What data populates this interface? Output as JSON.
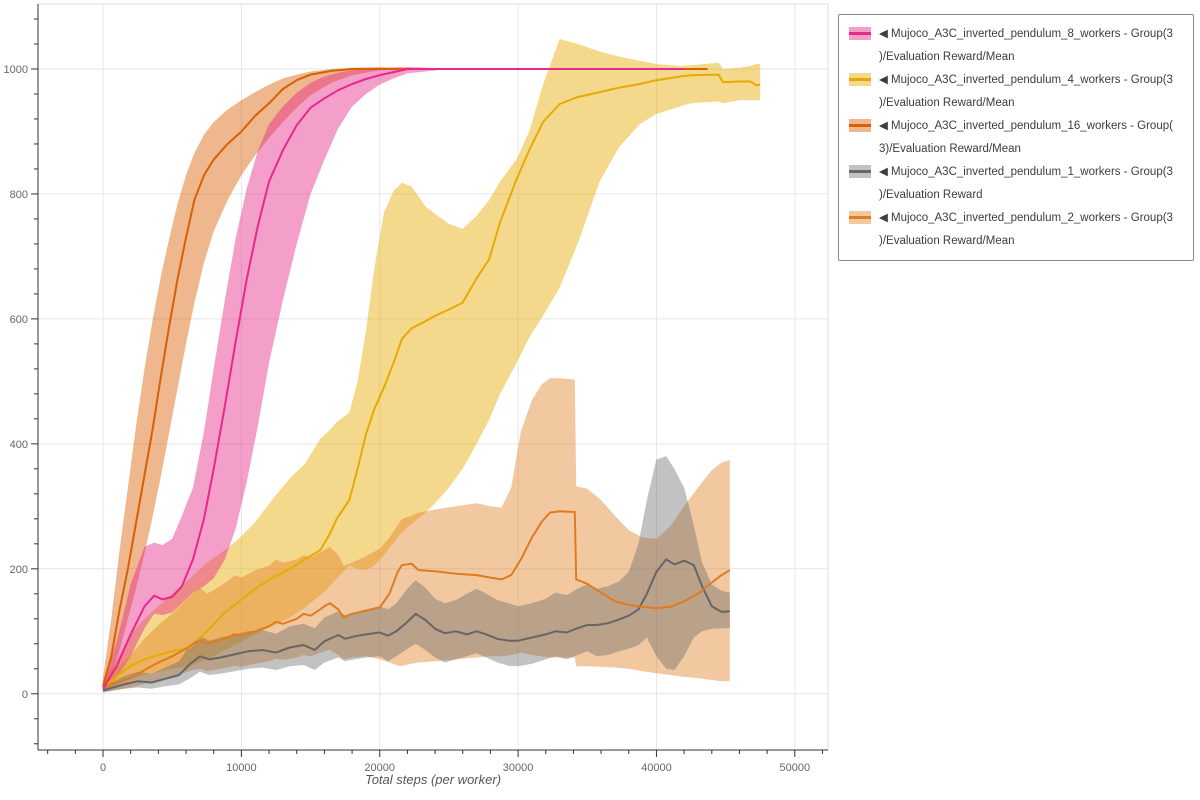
{
  "figure": {
    "background": "#ffffff"
  },
  "axis": {
    "x_tick_labels": [
      "0",
      "10000",
      "20000",
      "30000",
      "40000",
      "50000"
    ],
    "y_tick_labels": [
      "0",
      "200",
      "400",
      "600",
      "800",
      "1000"
    ],
    "colors": {
      "grid": "#e6e6e6",
      "frame": "#dedede",
      "axis_line": "#333333",
      "tick_label": "#666666",
      "xlabel": "#555555"
    }
  },
  "legend": {
    "border_color": "#8a8a8a",
    "entries": [
      {
        "series": "w8",
        "line1": "◀ Mujoco_A3C_inverted_pendulum_8_workers - Group(3",
        "line2": ")/Evaluation Reward/Mean"
      },
      {
        "series": "w4",
        "line1": "◀ Mujoco_A3C_inverted_pendulum_4_workers - Group(3",
        "line2": ")/Evaluation Reward/Mean"
      },
      {
        "series": "w16",
        "line1": "◀ Mujoco_A3C_inverted_pendulum_16_workers - Group(",
        "line2": "3)/Evaluation Reward/Mean"
      },
      {
        "series": "w1",
        "line1": "◀ Mujoco_A3C_inverted_pendulum_1_workers - Group(3",
        "line2": ")/Evaluation Reward"
      },
      {
        "series": "w2",
        "line1": "◀ Mujoco_A3C_inverted_pendulum_2_workers - Group(3",
        "line2": ")/Evaluation Reward/Mean"
      }
    ]
  },
  "chart_data": {
    "type": "line",
    "title": "",
    "xlabel": "Total steps (per worker)",
    "ylabel": "",
    "xlim": [
      -4700,
      52400
    ],
    "ylim": [
      -90,
      1104
    ],
    "x_ticks": [
      0,
      10000,
      20000,
      30000,
      40000,
      50000
    ],
    "y_ticks": [
      0,
      200,
      400,
      600,
      800,
      1000
    ],
    "x_minor_step": 2000,
    "y_minor_step": 40,
    "grid": true,
    "legend_position": "outside-top-right",
    "band_order": [
      "w4",
      "w16",
      "w8",
      "w2",
      "w1"
    ],
    "line_order": [
      "w4",
      "w1",
      "w2",
      "w16",
      "w8"
    ],
    "series": {
      "w8": {
        "name": "Mujoco_A3C_inverted_pendulum_8_workers - Group(3)/Evaluation Reward/Mean",
        "color": "#e7298a",
        "band_alpha": 0.45,
        "x": [
          0,
          1000,
          2000,
          3000,
          3700,
          4300,
          5000,
          5700,
          6500,
          7300,
          8000,
          8800,
          9600,
          10400,
          11200,
          12000,
          13000,
          14000,
          15000,
          16000,
          17000,
          18000,
          19000,
          20000,
          21000,
          22000,
          25000,
          30000,
          35000,
          40000,
          41900
        ],
        "mean": [
          8,
          45,
          95,
          140,
          157,
          151,
          155,
          172,
          215,
          280,
          360,
          460,
          565,
          665,
          750,
          820,
          870,
          910,
          938,
          953,
          966,
          976,
          984,
          990,
          995,
          1000,
          1000,
          1000,
          1000,
          1000,
          1000
        ],
        "lower": [
          4,
          25,
          60,
          105,
          128,
          126,
          130,
          145,
          162,
          172,
          185,
          215,
          265,
          340,
          430,
          530,
          630,
          720,
          800,
          855,
          905,
          940,
          960,
          975,
          985,
          993,
          1000,
          1000,
          1000,
          1000,
          1000
        ],
        "upper": [
          15,
          85,
          175,
          235,
          242,
          238,
          248,
          285,
          330,
          420,
          520,
          630,
          730,
          810,
          870,
          912,
          940,
          962,
          978,
          988,
          994,
          998,
          1000,
          1001,
          1002,
          1003,
          1001,
          1001,
          1001,
          1001,
          1001
        ]
      },
      "w4": {
        "name": "Mujoco_A3C_inverted_pendulum_4_workers - Group(3)/Evaluation Reward/Mean",
        "color": "#e6ab02",
        "band_alpha": 0.45,
        "x": [
          0,
          1000,
          2000,
          3000,
          4000,
          5000,
          6300,
          7500,
          8800,
          9900,
          11000,
          12200,
          13500,
          14600,
          15700,
          16300,
          16900,
          17800,
          18400,
          19000,
          19600,
          20300,
          21000,
          21600,
          22300,
          23300,
          24000,
          25000,
          26000,
          27000,
          27900,
          28700,
          29900,
          30800,
          31800,
          33000,
          34300,
          35900,
          37300,
          38800,
          40000,
          41700,
          42500,
          44500,
          44800,
          46000,
          46800,
          47200,
          47500
        ],
        "mean": [
          10,
          28,
          45,
          55,
          62,
          68,
          74,
          100,
          130,
          149,
          168,
          185,
          200,
          215,
          230,
          252,
          280,
          310,
          360,
          415,
          455,
          490,
          530,
          568,
          585,
          596,
          605,
          615,
          626,
          665,
          695,
          755,
          824,
          870,
          915,
          944,
          955,
          963,
          970,
          976,
          982,
          988,
          990,
          991,
          979,
          980,
          980,
          974,
          975
        ],
        "lower": [
          4,
          14,
          24,
          30,
          35,
          40,
          45,
          55,
          70,
          82,
          95,
          108,
          122,
          138,
          158,
          170,
          185,
          205,
          200,
          198,
          205,
          222,
          242,
          258,
          272,
          290,
          305,
          330,
          360,
          400,
          438,
          480,
          530,
          570,
          605,
          650,
          720,
          820,
          875,
          912,
          928,
          940,
          945,
          948,
          945,
          950,
          950,
          950,
          950
        ],
        "upper": [
          20,
          55,
          95,
          120,
          140,
          160,
          185,
          210,
          230,
          250,
          275,
          310,
          345,
          368,
          408,
          420,
          435,
          450,
          500,
          580,
          680,
          770,
          805,
          818,
          812,
          780,
          768,
          752,
          744,
          765,
          790,
          820,
          856,
          900,
          975,
          1048,
          1040,
          1028,
          1020,
          1013,
          1008,
          1005,
          1006,
          1010,
          1000,
          1002,
          1005,
          1008,
          1008
        ]
      },
      "w16": {
        "name": "Mujoco_A3C_inverted_pendulum_16_workers - Group(3)/Evaluation Reward/Mean",
        "color": "#d95f02",
        "band_alpha": 0.45,
        "x": [
          0,
          600,
          1200,
          1800,
          2400,
          3000,
          3600,
          4200,
          4800,
          5400,
          6000,
          6600,
          7300,
          8000,
          9000,
          10000,
          11000,
          12000,
          13000,
          14000,
          15000,
          16500,
          18000,
          20000,
          25000,
          30000,
          35000,
          40000,
          43700
        ],
        "mean": [
          12,
          60,
          135,
          200,
          275,
          350,
          425,
          510,
          590,
          665,
          730,
          790,
          830,
          855,
          880,
          900,
          925,
          945,
          968,
          982,
          991,
          997,
          1000,
          1000,
          1000,
          1000,
          1000,
          1000,
          1000
        ],
        "lower": [
          5,
          30,
          70,
          120,
          170,
          225,
          285,
          350,
          420,
          490,
          560,
          625,
          690,
          740,
          790,
          830,
          862,
          890,
          915,
          938,
          958,
          978,
          990,
          998,
          1000,
          1000,
          1000,
          1000,
          1000
        ],
        "upper": [
          25,
          120,
          230,
          330,
          430,
          520,
          600,
          670,
          730,
          785,
          830,
          865,
          895,
          915,
          935,
          950,
          963,
          975,
          985,
          991,
          996,
          1000,
          1002,
          1003,
          1001,
          1001,
          1001,
          1001,
          1001
        ]
      },
      "w1": {
        "name": "Mujoco_A3C_inverted_pendulum_1_workers - Group(3)/Evaluation Reward",
        "color": "#666666",
        "band_alpha": 0.4,
        "x": [
          0,
          1500,
          2500,
          3500,
          4500,
          5500,
          6300,
          7000,
          7700,
          8500,
          9500,
          10500,
          11500,
          12500,
          13500,
          14500,
          15300,
          16000,
          17000,
          17500,
          18200,
          19000,
          20000,
          20600,
          21200,
          22000,
          22600,
          23300,
          24000,
          24700,
          25500,
          26300,
          27000,
          27700,
          28500,
          29300,
          30000,
          31000,
          32000,
          32700,
          33500,
          34300,
          35000,
          35700,
          36500,
          37300,
          38000,
          38700,
          39300,
          40000,
          40700,
          41300,
          42000,
          42700,
          43300,
          44000,
          44700,
          45300
        ],
        "mean": [
          5,
          15,
          20,
          18,
          24,
          30,
          48,
          60,
          55,
          58,
          63,
          68,
          70,
          66,
          74,
          78,
          70,
          84,
          94,
          88,
          92,
          95,
          98,
          93,
          100,
          115,
          128,
          118,
          104,
          97,
          100,
          95,
          100,
          95,
          88,
          85,
          85,
          90,
          95,
          100,
          98,
          105,
          110,
          110,
          113,
          119,
          125,
          135,
          160,
          195,
          215,
          207,
          213,
          206,
          172,
          140,
          131,
          132
        ],
        "lower": [
          2,
          8,
          10,
          8,
          12,
          15,
          25,
          35,
          30,
          32,
          36,
          40,
          42,
          38,
          44,
          46,
          38,
          50,
          58,
          52,
          55,
          58,
          60,
          52,
          60,
          72,
          80,
          70,
          58,
          50,
          55,
          60,
          65,
          58,
          50,
          45,
          44,
          48,
          55,
          60,
          55,
          62,
          68,
          60,
          62,
          68,
          72,
          78,
          90,
          60,
          40,
          38,
          60,
          90,
          100,
          104,
          105,
          105
        ],
        "upper": [
          10,
          28,
          35,
          32,
          42,
          52,
          78,
          92,
          85,
          90,
          95,
          100,
          102,
          96,
          108,
          112,
          105,
          122,
          132,
          126,
          130,
          135,
          140,
          135,
          145,
          168,
          182,
          170,
          152,
          145,
          150,
          160,
          168,
          160,
          150,
          145,
          140,
          145,
          152,
          162,
          158,
          168,
          175,
          168,
          172,
          180,
          195,
          240,
          310,
          375,
          380,
          360,
          330,
          270,
          210,
          175,
          165,
          162
        ]
      },
      "w2": {
        "name": "Mujoco_A3C_inverted_pendulum_2_workers - Group(3)/Evaluation Reward/Mean",
        "color": "#e07b1e",
        "band_alpha": 0.42,
        "x": [
          0,
          1000,
          2000,
          3000,
          4000,
          5000,
          6000,
          6500,
          7000,
          7500,
          8000,
          9000,
          9500,
          10000,
          11000,
          12000,
          12500,
          13000,
          14000,
          14500,
          15000,
          15500,
          16000,
          16400,
          17000,
          17400,
          18000,
          19000,
          20000,
          20700,
          21300,
          21600,
          22300,
          22800,
          24000,
          25500,
          27000,
          28000,
          28800,
          29500,
          30200,
          31000,
          31700,
          32300,
          33000,
          34100,
          34200,
          35000,
          36000,
          37000,
          38000,
          39000,
          40000,
          41000,
          42000,
          43000,
          44000,
          44700,
          45300
        ],
        "mean": [
          10,
          18,
          25,
          38,
          50,
          60,
          72,
          80,
          85,
          80,
          83,
          90,
          95,
          93,
          100,
          108,
          115,
          112,
          120,
          128,
          125,
          132,
          140,
          145,
          135,
          122,
          128,
          133,
          138,
          160,
          195,
          206,
          208,
          198,
          196,
          192,
          190,
          186,
          183,
          190,
          215,
          250,
          275,
          290,
          292,
          291,
          183,
          176,
          162,
          148,
          142,
          139,
          137,
          139,
          148,
          160,
          178,
          190,
          198
        ],
        "lower": [
          3,
          6,
          10,
          16,
          22,
          28,
          34,
          38,
          40,
          36,
          38,
          42,
          45,
          43,
          48,
          52,
          56,
          54,
          58,
          62,
          60,
          64,
          68,
          70,
          62,
          55,
          58,
          60,
          55,
          50,
          45,
          45,
          48,
          50,
          52,
          55,
          58,
          60,
          60,
          62,
          66,
          62,
          60,
          58,
          58,
          58,
          44,
          44,
          43,
          42,
          40,
          36,
          33,
          30,
          27,
          25,
          22,
          20,
          20
        ],
        "upper": [
          20,
          42,
          62,
          88,
          110,
          128,
          150,
          162,
          170,
          160,
          166,
          180,
          190,
          186,
          198,
          205,
          215,
          210,
          215,
          222,
          218,
          224,
          230,
          235,
          222,
          205,
          210,
          220,
          232,
          250,
          270,
          280,
          285,
          290,
          295,
          300,
          305,
          300,
          298,
          330,
          420,
          470,
          495,
          505,
          505,
          503,
          332,
          328,
          310,
          285,
          262,
          250,
          248,
          268,
          300,
          330,
          358,
          370,
          374
        ]
      }
    }
  }
}
